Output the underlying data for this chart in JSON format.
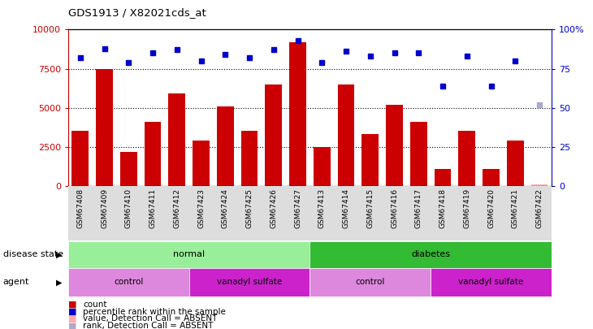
{
  "title": "GDS1913 / X82021cds_at",
  "samples": [
    "GSM67408",
    "GSM67409",
    "GSM67410",
    "GSM67411",
    "GSM67412",
    "GSM67423",
    "GSM67424",
    "GSM67425",
    "GSM67426",
    "GSM67427",
    "GSM67413",
    "GSM67414",
    "GSM67415",
    "GSM67416",
    "GSM67417",
    "GSM67418",
    "GSM67419",
    "GSM67420",
    "GSM67421",
    "GSM67422"
  ],
  "counts": [
    3500,
    7500,
    2200,
    4100,
    5900,
    2900,
    5100,
    3500,
    6500,
    9200,
    2500,
    6500,
    3300,
    5200,
    4100,
    1100,
    3500,
    1100,
    2900,
    100
  ],
  "percentile_ranks": [
    82,
    88,
    79,
    85,
    87,
    80,
    84,
    82,
    87,
    93,
    79,
    86,
    83,
    85,
    85,
    64,
    83,
    64,
    80,
    52
  ],
  "absent_flags": [
    false,
    false,
    false,
    false,
    false,
    false,
    false,
    false,
    false,
    false,
    false,
    false,
    false,
    false,
    false,
    false,
    false,
    false,
    false,
    true
  ],
  "bar_color_normal": "#cc0000",
  "bar_color_absent": "#ffaaaa",
  "dot_color_normal": "#0000cc",
  "dot_color_absent": "#aaaacc",
  "ylim_left": [
    0,
    10000
  ],
  "ylim_right": [
    0,
    100
  ],
  "yticks_left": [
    0,
    2500,
    5000,
    7500,
    10000
  ],
  "yticks_right": [
    0,
    25,
    50,
    75,
    100
  ],
  "disease_state_groups": [
    {
      "label": "normal",
      "start": 0,
      "end": 9,
      "color": "#99ee99"
    },
    {
      "label": "diabetes",
      "start": 10,
      "end": 19,
      "color": "#33bb33"
    }
  ],
  "agent_groups": [
    {
      "label": "control",
      "start": 0,
      "end": 4,
      "color": "#dd88dd"
    },
    {
      "label": "vanadyl sulfate",
      "start": 5,
      "end": 9,
      "color": "#cc22cc"
    },
    {
      "label": "control",
      "start": 10,
      "end": 14,
      "color": "#dd88dd"
    },
    {
      "label": "vanadyl sulfate",
      "start": 15,
      "end": 19,
      "color": "#cc22cc"
    }
  ],
  "disease_label": "disease state",
  "agent_label": "agent",
  "legend_items": [
    {
      "label": "count",
      "color": "#cc0000"
    },
    {
      "label": "percentile rank within the sample",
      "color": "#0000cc"
    },
    {
      "label": "value, Detection Call = ABSENT",
      "color": "#ffaaaa"
    },
    {
      "label": "rank, Detection Call = ABSENT",
      "color": "#aaaacc"
    }
  ],
  "bg_color": "#dddddd",
  "fig_width": 7.3,
  "fig_height": 4.05,
  "dpi": 100
}
